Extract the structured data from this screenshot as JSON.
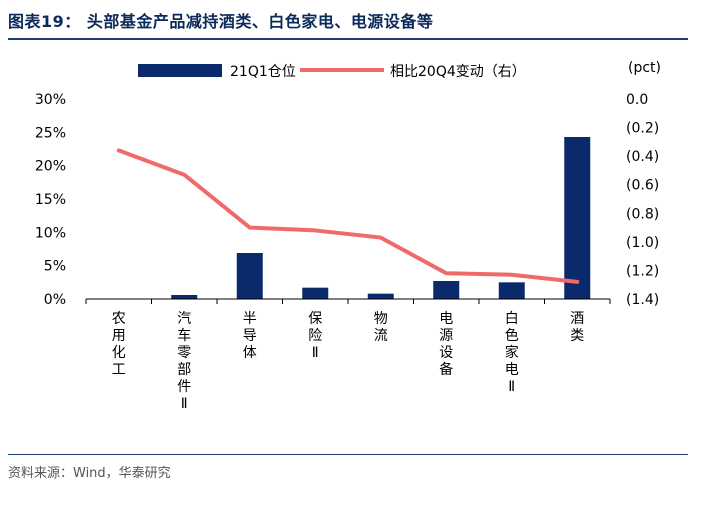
{
  "header": {
    "title": "图表19：   头部基金产品减持酒类、白色家电、电源设备等"
  },
  "footer": {
    "source": "资料来源：Wind，华泰研究"
  },
  "chart_data": {
    "type": "bar",
    "categories": [
      "农用化工",
      "汽车零部件Ⅱ",
      "半导体",
      "保险Ⅱ",
      "物流",
      "电源设备",
      "白色家电Ⅱ",
      "酒类"
    ],
    "series": [
      {
        "name": "21Q1仓位",
        "type": "bar",
        "axis": "left",
        "color": "#0b2a6b",
        "values": [
          0.0,
          0.6,
          6.9,
          1.7,
          0.8,
          2.7,
          2.5,
          24.3
        ]
      },
      {
        "name": "相比20Q4变动（右）",
        "type": "line",
        "axis": "right",
        "color": "#f06a6a",
        "values": [
          -0.36,
          -0.53,
          -0.9,
          -0.92,
          -0.97,
          -1.22,
          -1.23,
          -1.28
        ]
      }
    ],
    "y_left": {
      "ylim": [
        0,
        30
      ],
      "ticks": [
        "0%",
        "5%",
        "10%",
        "15%",
        "20%",
        "25%",
        "30%"
      ]
    },
    "y_right": {
      "ylim": [
        -1.4,
        0
      ],
      "unit": "(pct)",
      "ticks": [
        "0.0",
        "(0.2)",
        "(0.4)",
        "(0.6)",
        "(0.8)",
        "(1.0)",
        "(1.2)",
        "(1.4)"
      ]
    },
    "grid": false,
    "legend": "top"
  }
}
